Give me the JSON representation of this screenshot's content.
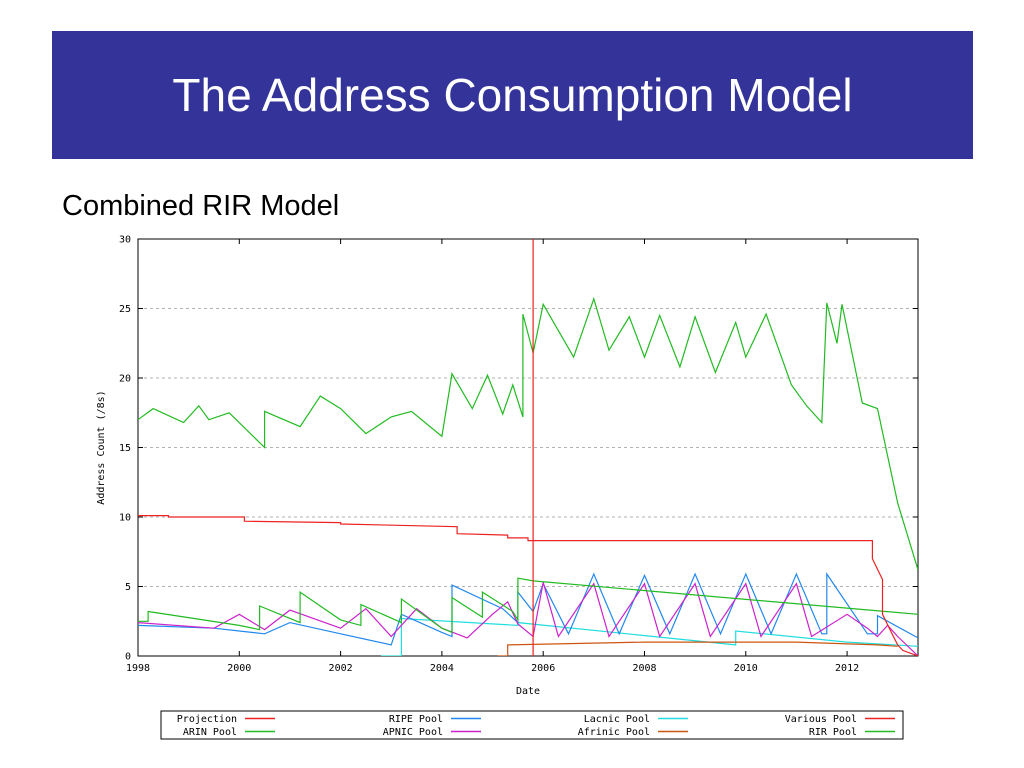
{
  "slide": {
    "title": "The Address Consumption Model",
    "subtitle": "Combined RIR Model"
  },
  "colors": {
    "title_bg": "#333399",
    "projection": "#ee2222",
    "arin": "#22bb22",
    "ripe": "#2288ee",
    "apnic": "#cc22cc",
    "lacnic": "#22dddd",
    "afrinic": "#cc5511",
    "various": "#ee2222",
    "rir": "#22bb22"
  },
  "chart_data": {
    "type": "line",
    "xlabel": "Date",
    "ylabel": "Address Count (/8s)",
    "xlim": [
      1998,
      2013.4
    ],
    "ylim": [
      0,
      30
    ],
    "x_ticks": [
      "1998",
      "2000",
      "2002",
      "2004",
      "2006",
      "2008",
      "2010",
      "2012"
    ],
    "y_ticks": [
      "0",
      "5",
      "10",
      "15",
      "20",
      "25",
      "30"
    ],
    "grid": "horizontal dashed",
    "vertical_marker_x": 2005.8,
    "legend_position": "bottom",
    "series": [
      {
        "name": "Projection",
        "key": "projection",
        "x": [
          2005.8,
          2005.8
        ],
        "y": [
          0,
          30
        ]
      },
      {
        "name": "ARIN Pool",
        "key": "arin",
        "x": [
          1998,
          1998.2,
          1998.2,
          2000.0,
          2000.4,
          2000.4,
          2001.2,
          2001.2,
          2002.0,
          2002.4,
          2002.4,
          2003.2,
          2003.2,
          2004.0,
          2004.2,
          2004.2,
          2004.8,
          2004.8,
          2005.4,
          2005.5,
          2005.5,
          2005.8,
          2013.4
        ],
        "y": [
          2.5,
          2.5,
          3.2,
          2.2,
          1.9,
          3.6,
          2.4,
          4.6,
          2.6,
          2.2,
          3.7,
          2.4,
          4.1,
          2.0,
          1.7,
          4.2,
          2.8,
          4.6,
          3.2,
          2.6,
          5.6,
          5.4,
          3.0
        ]
      },
      {
        "name": "RIPE Pool",
        "key": "ripe",
        "x": [
          1998,
          1999.5,
          2000.0,
          2000.5,
          2001.0,
          2001.0,
          2002.0,
          2002.0,
          2003.0,
          2003.2,
          2004.0,
          2004.2,
          2004.2,
          2005.2,
          2005.5,
          2005.5,
          2005.8,
          2006.0,
          2006.5,
          2006.5,
          2007.0,
          2007.5,
          2007.5,
          2008.0,
          2008.5,
          2008.5,
          2009.0,
          2009.5,
          2009.5,
          2010.0,
          2010.5,
          2010.5,
          2011.0,
          2011.5,
          2011.6,
          2011.6,
          2012.4,
          2012.6,
          2012.6,
          2013.4
        ],
        "y": [
          2.2,
          2.0,
          1.8,
          1.6,
          2.4,
          2.4,
          1.6,
          1.6,
          0.8,
          3.0,
          1.7,
          1.4,
          5.1,
          3.4,
          2.4,
          4.6,
          3.2,
          5.2,
          1.6,
          1.6,
          5.9,
          1.6,
          1.6,
          5.8,
          1.6,
          1.6,
          5.9,
          1.6,
          1.6,
          5.9,
          1.6,
          1.6,
          5.9,
          1.6,
          1.6,
          5.9,
          1.6,
          1.6,
          2.9,
          1.3
        ]
      },
      {
        "name": "APNIC Pool",
        "key": "apnic",
        "x": [
          1998,
          1999.5,
          2000.0,
          2000.5,
          2001.0,
          2002.0,
          2002.5,
          2003.0,
          2003.5,
          2004.0,
          2004.5,
          2005.0,
          2005.3,
          2005.5,
          2005.8,
          2006.0,
          2006.3,
          2006.3,
          2007.0,
          2007.3,
          2007.3,
          2008.0,
          2008.3,
          2008.3,
          2009.0,
          2009.3,
          2009.3,
          2010.0,
          2010.3,
          2010.3,
          2011.0,
          2011.3,
          2011.3,
          2012.0,
          2012.4,
          2012.6,
          2012.8,
          2013.0,
          2013.4
        ],
        "y": [
          2.4,
          2.0,
          3.0,
          1.9,
          3.3,
          2.0,
          3.4,
          1.4,
          3.4,
          2.0,
          1.3,
          3.0,
          3.9,
          2.3,
          1.4,
          5.3,
          1.4,
          1.4,
          5.2,
          1.4,
          1.4,
          5.2,
          1.4,
          1.4,
          5.2,
          1.4,
          1.4,
          5.2,
          1.4,
          1.4,
          5.2,
          1.4,
          1.4,
          3.0,
          2.0,
          1.4,
          2.2,
          1.4,
          0.0
        ]
      },
      {
        "name": "Lacnic Pool",
        "key": "lacnic",
        "x": [
          2002.8,
          2003.0,
          2003.2,
          2003.2,
          2005.5,
          2005.5,
          2009.8,
          2009.8,
          2012.0,
          2013.4
        ],
        "y": [
          0.0,
          0.0,
          0.0,
          2.7,
          2.2,
          2.4,
          0.8,
          1.8,
          1.0,
          0.7
        ]
      },
      {
        "name": "Afrinic Pool",
        "key": "afrinic",
        "x": [
          2005.1,
          2005.3,
          2005.3,
          2008.0,
          2011.0,
          2012.6,
          2013.0
        ],
        "y": [
          0.0,
          0.0,
          0.8,
          1.0,
          1.0,
          0.8,
          0.7
        ]
      },
      {
        "name": "Various Pool",
        "key": "various",
        "x": [
          1998,
          1998.6,
          1998.6,
          2000.1,
          2000.1,
          2002.0,
          2002.0,
          2004.3,
          2004.3,
          2005.3,
          2005.3,
          2005.7,
          2005.7,
          2012.5,
          2012.5,
          2012.7,
          2012.7,
          2012.9,
          2013.0,
          2013.1,
          2013.4
        ],
        "y": [
          10.1,
          10.1,
          10.0,
          10.0,
          9.7,
          9.6,
          9.5,
          9.3,
          8.8,
          8.7,
          8.5,
          8.5,
          8.3,
          8.3,
          7.0,
          5.5,
          3.0,
          1.5,
          0.8,
          0.4,
          0.0
        ]
      },
      {
        "name": "RIR Pool",
        "key": "rir",
        "x": [
          1998,
          1998.3,
          1998.9,
          1999.2,
          1999.4,
          1999.8,
          2000.5,
          2000.5,
          2001.2,
          2001.6,
          2002.0,
          2002.5,
          2003.0,
          2003.4,
          2004.0,
          2004.2,
          2004.6,
          2004.9,
          2005.2,
          2005.4,
          2005.6,
          2005.6,
          2005.8,
          2006.0,
          2006.6,
          2007.0,
          2007.3,
          2007.7,
          2008.0,
          2008.3,
          2008.7,
          2009.0,
          2009.4,
          2009.8,
          2010.0,
          2010.4,
          2010.9,
          2011.2,
          2011.5,
          2011.6,
          2011.8,
          2011.9,
          2012.3,
          2012.6,
          2013.0,
          2013.4
        ],
        "y": [
          17.0,
          17.8,
          16.8,
          18.0,
          17.0,
          17.5,
          15.0,
          17.6,
          16.5,
          18.7,
          17.8,
          16.0,
          17.2,
          17.6,
          15.8,
          20.3,
          17.8,
          20.2,
          17.4,
          19.5,
          17.2,
          24.6,
          21.8,
          25.3,
          21.5,
          25.7,
          22.0,
          24.4,
          21.5,
          24.5,
          20.8,
          24.4,
          20.4,
          24.0,
          21.5,
          24.6,
          19.5,
          18.0,
          16.8,
          25.4,
          22.5,
          25.3,
          18.2,
          17.8,
          11.0,
          6.2
        ]
      }
    ],
    "legend": [
      [
        "Projection",
        "RIPE Pool",
        "Lacnic Pool",
        "Various Pool"
      ],
      [
        "ARIN Pool",
        "APNIC Pool",
        "Afrinic Pool",
        "RIR Pool"
      ]
    ]
  }
}
